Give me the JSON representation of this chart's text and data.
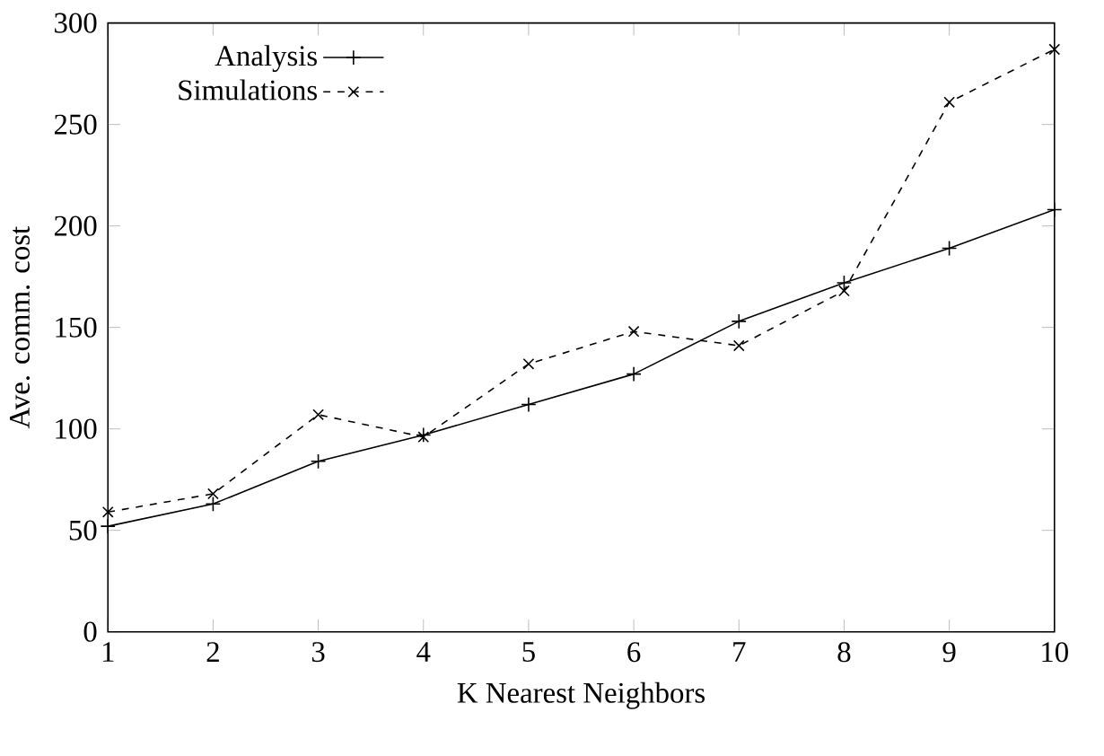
{
  "chart_data": {
    "type": "line",
    "xlabel": "K Nearest Neighbors",
    "ylabel": "Ave. comm. cost",
    "x": [
      1,
      2,
      3,
      4,
      5,
      6,
      7,
      8,
      9,
      10
    ],
    "series": [
      {
        "name": "Analysis",
        "color": "#000000",
        "marker": "plus",
        "line_style": "solid",
        "values": [
          52,
          63,
          84,
          97,
          112,
          127,
          153,
          172,
          189,
          208
        ]
      },
      {
        "name": "Simulations",
        "color": "#000000",
        "marker": "cross",
        "line_style": "dashed",
        "values": [
          59,
          68,
          107,
          96,
          132,
          148,
          141,
          168,
          261,
          287
        ]
      }
    ],
    "xlim": [
      1,
      10
    ],
    "xticks": [
      1,
      2,
      3,
      4,
      5,
      6,
      7,
      8,
      9,
      10
    ],
    "ylim": [
      0,
      300
    ],
    "yticks": [
      0,
      50,
      100,
      150,
      200,
      250,
      300
    ],
    "grid": false,
    "legend": "top left"
  }
}
